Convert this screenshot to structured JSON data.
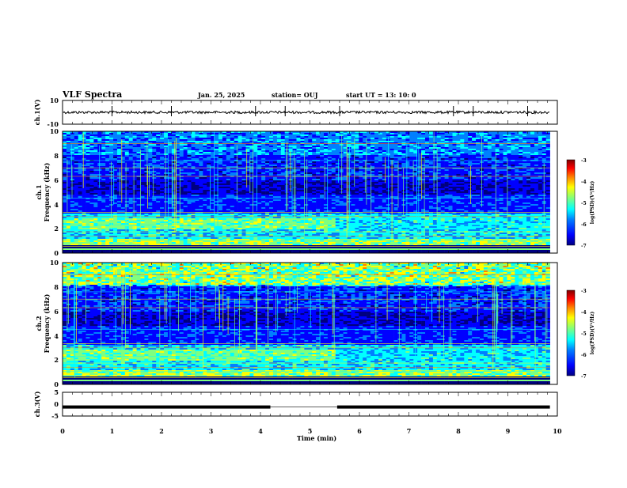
{
  "header": {
    "title": "VLF Spectra",
    "date": "Jan. 25, 2025",
    "station": "station= OUJ",
    "start_ut": "start  UT =   13: 10: 0"
  },
  "chart_data": [
    {
      "type": "line",
      "name": "ch1-waveform",
      "ylabel": "ch.1(V)",
      "ylim": [
        -10,
        10
      ],
      "yticks": [
        "10",
        "-10"
      ],
      "baseline": 0,
      "spikes_min": [
        1.0,
        4.5,
        7.9,
        9.4,
        2.2,
        3.9,
        5.6,
        8.3
      ],
      "xlim": [
        0,
        10
      ]
    },
    {
      "type": "heatmap",
      "name": "ch1-spectrogram",
      "ylabel": "ch.1",
      "ylabel2": "Frequency (kHz)",
      "ylim": [
        0,
        10
      ],
      "yticks": [
        "0",
        "2",
        "4",
        "6",
        "8",
        "10"
      ],
      "xlim": [
        0,
        10
      ],
      "colorbar": {
        "label": "log(PSD)(V²/Hz)",
        "range": [
          -7,
          -3
        ],
        "ticks": [
          "-3",
          "-4",
          "-5",
          "-6",
          "-7"
        ]
      }
    },
    {
      "type": "heatmap",
      "name": "ch2-spectrogram",
      "ylabel": "ch.2",
      "ylabel2": "Frequency (kHz)",
      "ylim": [
        0,
        10
      ],
      "yticks": [
        "0",
        "2",
        "4",
        "6",
        "8",
        "10"
      ],
      "xlim": [
        0,
        10
      ],
      "colorbar": {
        "label": "log(PSD)(V²/Hz)",
        "range": [
          -7,
          -3
        ],
        "ticks": [
          "-3",
          "-4",
          "-5",
          "-6",
          "-7"
        ]
      }
    },
    {
      "type": "line",
      "name": "ch3-signal",
      "ylabel": "ch.3(V)",
      "ylim": [
        -5,
        5
      ],
      "yticks": [
        "5",
        "0",
        "-5"
      ],
      "level": -1.2,
      "segments_min": [
        [
          0,
          4.2
        ],
        [
          5.55,
          9.85
        ]
      ],
      "xlim": [
        0,
        10
      ]
    }
  ],
  "xaxis": {
    "label": "Time (min)",
    "ticks": [
      "0",
      "1",
      "2",
      "3",
      "4",
      "5",
      "6",
      "7",
      "8",
      "9",
      "10"
    ]
  },
  "colors": {
    "jet": [
      "#00007f",
      "#0000ff",
      "#007fff",
      "#00ffff",
      "#7fff7f",
      "#ffff00",
      "#ff7f00",
      "#ff0000",
      "#7f0000"
    ]
  }
}
